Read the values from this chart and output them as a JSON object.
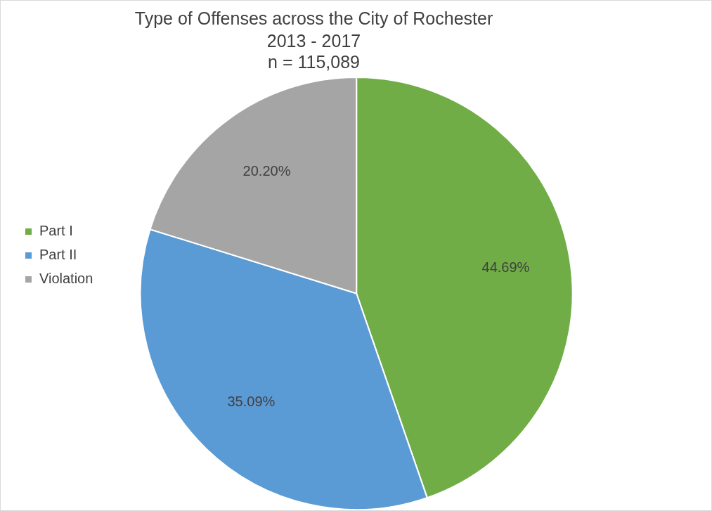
{
  "chart_data": {
    "type": "pie",
    "title": "Type of Offenses across the City of Rochester",
    "subtitle": "2013 - 2017\nn = 115,089",
    "categories": [
      "Part I",
      "Part II",
      "Violation"
    ],
    "values": [
      44.69,
      35.09,
      20.2
    ],
    "colors": [
      "#70ad47",
      "#5b9bd5",
      "#a5a5a5"
    ],
    "value_labels": [
      "44.69%",
      "35.09%",
      "20.20%"
    ],
    "legend": "left"
  }
}
